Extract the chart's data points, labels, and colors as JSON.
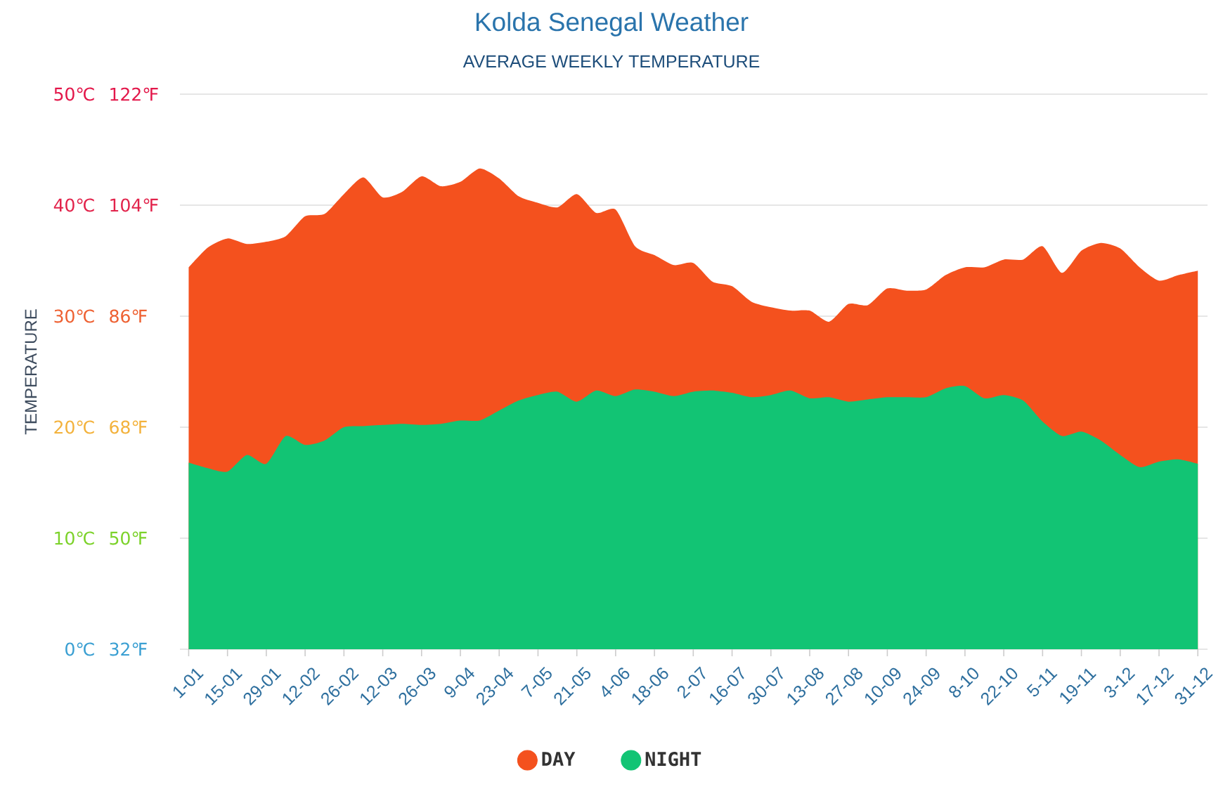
{
  "chart_data": {
    "type": "area",
    "title": "Kolda Senegal Weather",
    "subtitle": "AVERAGE WEEKLY TEMPERATURE",
    "ylabel": "TEMPERATURE",
    "categories": [
      "1-01",
      null,
      "15-01",
      null,
      "29-01",
      null,
      "12-02",
      null,
      "26-02",
      null,
      "12-03",
      null,
      "26-03",
      null,
      "9-04",
      null,
      "23-04",
      null,
      "7-05",
      null,
      "21-05",
      null,
      "4-06",
      null,
      "18-06",
      null,
      "2-07",
      null,
      "16-07",
      null,
      "30-07",
      null,
      "13-08",
      null,
      "27-08",
      null,
      "10-09",
      null,
      "24-09",
      null,
      "8-10",
      null,
      "22-10",
      null,
      "5-11",
      null,
      "19-11",
      null,
      "3-12",
      null,
      "17-12",
      null,
      "31-12"
    ],
    "series": [
      {
        "name": "DAY",
        "color": "#f4511e",
        "values": [
          34.4,
          36.2,
          37.0,
          36.5,
          36.7,
          37.2,
          39.0,
          39.2,
          41.0,
          42.5,
          40.7,
          41.2,
          42.6,
          41.7,
          42.1,
          43.3,
          42.4,
          40.8,
          40.2,
          39.8,
          41.0,
          39.3,
          39.6,
          36.3,
          35.5,
          34.6,
          34.8,
          33.1,
          32.7,
          31.3,
          30.8,
          30.5,
          30.5,
          29.5,
          31.1,
          31.0,
          32.5,
          32.3,
          32.4,
          33.7,
          34.4,
          34.4,
          35.1,
          35.1,
          36.3,
          33.9,
          35.9,
          36.6,
          36.1,
          34.4,
          33.2,
          33.7,
          34.1
        ]
      },
      {
        "name": "NIGHT",
        "color": "#12c474",
        "values": [
          16.8,
          16.3,
          16.0,
          17.5,
          16.7,
          19.2,
          18.4,
          18.8,
          20.0,
          20.1,
          20.2,
          20.3,
          20.2,
          20.3,
          20.6,
          20.6,
          21.5,
          22.4,
          22.9,
          23.2,
          22.3,
          23.3,
          22.8,
          23.4,
          23.2,
          22.8,
          23.2,
          23.3,
          23.1,
          22.7,
          22.9,
          23.3,
          22.6,
          22.7,
          22.3,
          22.5,
          22.7,
          22.7,
          22.7,
          23.5,
          23.7,
          22.6,
          22.9,
          22.4,
          20.5,
          19.2,
          19.6,
          18.8,
          17.5,
          16.4,
          16.9,
          17.1,
          16.7
        ]
      }
    ],
    "ylim": [
      0,
      50
    ],
    "yticks": [
      {
        "value": 0,
        "label": "0℃"
      },
      {
        "value": 10,
        "label": "10℃"
      },
      {
        "value": 20,
        "label": "20℃"
      },
      {
        "value": 30,
        "label": "30℃"
      },
      {
        "value": 40,
        "label": "40℃"
      },
      {
        "value": 50,
        "label": "50℃"
      }
    ],
    "y2lim": [
      32,
      122
    ],
    "y2ticks": [
      {
        "value": 32,
        "label": "32℉"
      },
      {
        "value": 50,
        "label": "50℉"
      },
      {
        "value": 68,
        "label": "68℉"
      },
      {
        "value": 86,
        "label": "86℉"
      },
      {
        "value": 104,
        "label": "104℉"
      },
      {
        "value": 122,
        "label": "122℉"
      }
    ],
    "grid": "y",
    "legend": "bottom"
  }
}
